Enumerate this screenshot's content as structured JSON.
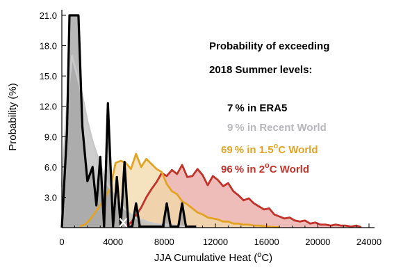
{
  "chart_data": {
    "type": "area",
    "xlabel": "JJA Cumulative Heat (",
    "xlabel_sup": "o",
    "xlabel_end": "C)",
    "ylabel": "Probability (%)",
    "xlim": [
      0,
      24000
    ],
    "ylim": [
      0,
      21.0
    ],
    "x_ticks": [
      0,
      4000,
      8000,
      12000,
      16000,
      20000,
      24000
    ],
    "x_tick_labels": [
      "0",
      "4000",
      "8000",
      "12000",
      "16000",
      "20000",
      "24000"
    ],
    "y_ticks": [
      3.0,
      6.0,
      9.0,
      12.0,
      15.0,
      18.0,
      21.0
    ],
    "y_tick_labels": [
      "3.0",
      "6.0",
      "9.0",
      "12.0",
      "15.0",
      "18.0",
      "21.0"
    ],
    "threshold_marker": {
      "x": 4800,
      "y": 0.5,
      "symbol": "x"
    },
    "annotations": {
      "title_line1": "Probability of exceeding",
      "title_line2": "2018 Summer levels:",
      "era5": "7 % in ERA5",
      "recent": "9 % in Recent World",
      "w15_pre": "69 % in 1.5",
      "w15_sup": "o",
      "w15_post": "C World",
      "w2_pre": "96 % in 2",
      "w2_sup": "o",
      "w2_post": "C World"
    },
    "series": [
      {
        "name": "2°C World",
        "color": "#c0322a",
        "fill": "#e8a6a2",
        "x": [
          5000,
          5400,
          5800,
          6200,
          6600,
          7000,
          7400,
          7800,
          8200,
          8600,
          9000,
          9400,
          9800,
          10200,
          10600,
          11000,
          11400,
          11800,
          12200,
          12600,
          13000,
          13400,
          13800,
          14200,
          14600,
          15000,
          15400,
          15800,
          16200,
          16600,
          17000,
          17400,
          17800,
          18200,
          18600,
          19000,
          19400,
          19800,
          20200,
          20600,
          21000,
          21400,
          21800,
          22200,
          22600,
          23000,
          23400
        ],
        "y": [
          0.1,
          0.5,
          1.2,
          2.0,
          3.0,
          3.8,
          4.5,
          5.4,
          5.1,
          5.7,
          5.3,
          6.2,
          5.0,
          5.1,
          5.8,
          5.2,
          4.2,
          5.1,
          4.7,
          4.1,
          4.4,
          3.6,
          3.2,
          2.7,
          2.9,
          2.4,
          2.1,
          1.8,
          1.9,
          1.3,
          1.1,
          0.9,
          1.0,
          0.7,
          0.6,
          0.7,
          0.4,
          0.5,
          0.3,
          0.3,
          0.2,
          0.3,
          0.2,
          0.2,
          0.1,
          0.2,
          0.05
        ]
      },
      {
        "name": "1.5°C World",
        "color": "#e3a325",
        "fill": "#f0d9a8",
        "x": [
          1400,
          1800,
          2200,
          2600,
          3000,
          3400,
          3800,
          4200,
          4600,
          5000,
          5400,
          5800,
          6200,
          6600,
          7000,
          7400,
          7800,
          8200,
          8600,
          9000,
          9400,
          9800,
          10200,
          10600,
          11000,
          11400,
          11800,
          12200,
          12600,
          13000,
          13400,
          13800,
          14200,
          14600,
          15000,
          15400,
          15800,
          16200,
          16600,
          17000
        ],
        "y": [
          0.1,
          0.3,
          0.8,
          1.5,
          2.2,
          3.0,
          4.0,
          6.4,
          6.6,
          6.4,
          5.8,
          7.3,
          6.0,
          6.8,
          6.3,
          5.8,
          5.5,
          4.3,
          3.6,
          3.3,
          2.6,
          2.3,
          1.9,
          1.5,
          1.3,
          1.0,
          0.9,
          0.8,
          0.6,
          0.6,
          0.4,
          0.4,
          0.3,
          0.3,
          0.2,
          0.2,
          0.15,
          0.1,
          0.05,
          0.05
        ]
      },
      {
        "name": "Recent World",
        "color": "#c8c8ca",
        "fill": "#bdbdbd",
        "x": [
          0,
          400,
          800,
          1200,
          1600,
          2000,
          2400,
          2800,
          3200,
          3600,
          4000,
          4400,
          4800,
          5200,
          5600,
          6000,
          6400,
          6800,
          7200,
          7600,
          8000,
          8400,
          8800,
          9200,
          9600,
          10000
        ],
        "y": [
          4.0,
          12.0,
          17.0,
          15.0,
          13.0,
          10.5,
          8.5,
          7.0,
          5.5,
          4.2,
          3.4,
          2.6,
          2.0,
          1.5,
          1.1,
          0.8,
          0.7,
          0.5,
          0.4,
          0.3,
          0.3,
          0.25,
          0.2,
          0.15,
          0.1,
          0.05
        ]
      },
      {
        "name": "ERA5",
        "color": "#000000",
        "fill": "#a0a0a0",
        "x": [
          0,
          400,
          600,
          1300,
          1600,
          2000,
          2400,
          2700,
          3000,
          3300,
          3600,
          4000,
          4300,
          4600,
          4900,
          5200,
          5500,
          5800,
          6100,
          6500,
          6800,
          7100,
          7500,
          7900,
          8200,
          8500,
          8800,
          9100,
          9400,
          9700,
          10000,
          10300,
          10500
        ],
        "y": [
          0,
          9.5,
          21.0,
          21.0,
          10.0,
          4.6,
          6.0,
          2.2,
          7.0,
          0.1,
          12.3,
          0.1,
          5.0,
          0.1,
          6.5,
          0.1,
          0.1,
          2.4,
          0.1,
          0.1,
          0.1,
          0.1,
          0.1,
          0.1,
          2.4,
          0.1,
          0.1,
          0.1,
          2.4,
          0.1,
          0.1,
          0.1,
          0.1
        ]
      }
    ]
  }
}
